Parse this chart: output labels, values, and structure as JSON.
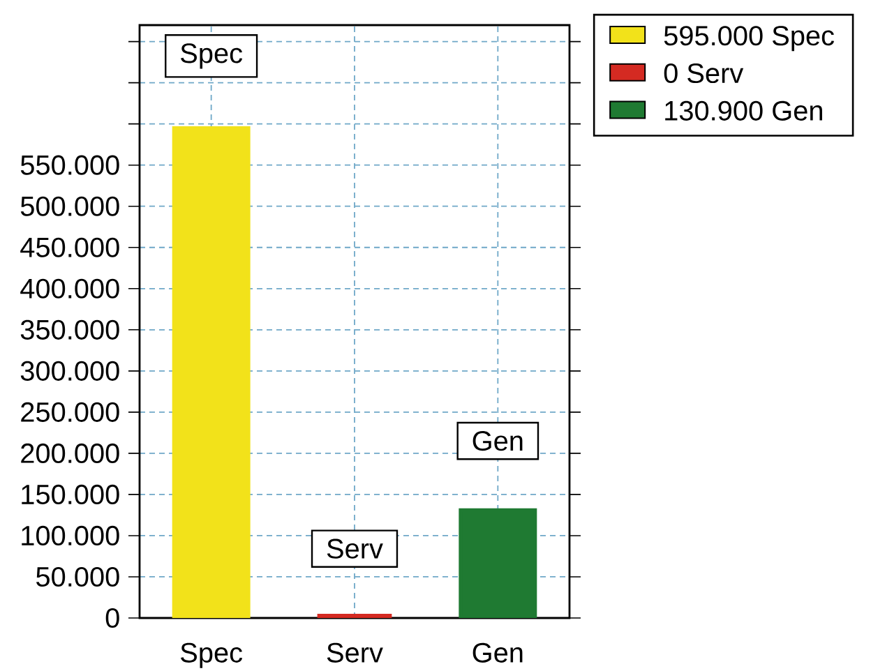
{
  "chart_data": {
    "type": "bar",
    "categories": [
      "Spec",
      "Serv",
      "Gen"
    ],
    "series": [
      {
        "name": "595.000 Spec",
        "color": "#f2e21a",
        "values": [
          595000,
          null,
          null
        ]
      },
      {
        "name": "0 Serv",
        "color": "#d42a22",
        "values": [
          null,
          0,
          null
        ]
      },
      {
        "name": "130.900 Gen",
        "color": "#1f7a32",
        "values": [
          null,
          null,
          130900
        ]
      }
    ],
    "ylim": [
      0,
      720000
    ],
    "yticks": [
      0,
      {
        "value": 50000,
        "label": "50.000"
      },
      {
        "value": 100000,
        "label": "100.000"
      },
      {
        "value": 150000,
        "label": "150.000"
      },
      {
        "value": 200000,
        "label": "200.000"
      },
      {
        "value": 250000,
        "label": "250.000"
      },
      {
        "value": 300000,
        "label": "300.000"
      },
      {
        "value": 350000,
        "label": "350.000"
      },
      {
        "value": 400000,
        "label": "400.000"
      },
      {
        "value": 450000,
        "label": "450.000"
      },
      {
        "value": 500000,
        "label": "500.000"
      },
      {
        "value": 550000,
        "label": "550.000"
      },
      {
        "value": 600000,
        "label": null
      },
      {
        "value": 650000,
        "label": null
      },
      {
        "value": 700000,
        "label": null
      }
    ],
    "grid": true,
    "legend": "top right",
    "annotations": [
      "Spec",
      "Serv",
      "Gen"
    ]
  }
}
